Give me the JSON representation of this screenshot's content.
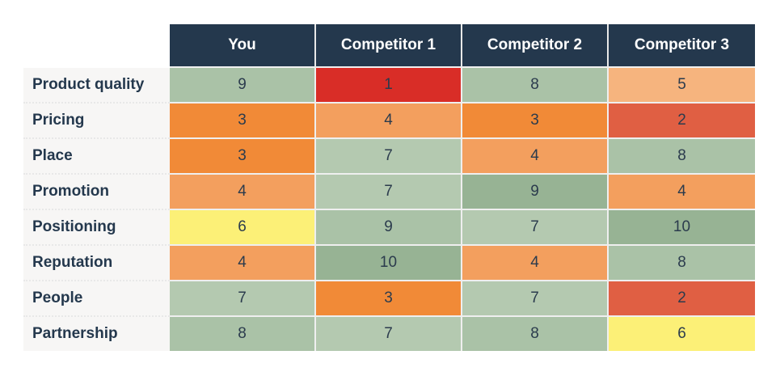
{
  "table": {
    "columns": [
      "You",
      "Competitor 1",
      "Competitor 2",
      "Competitor 3"
    ],
    "rows": [
      {
        "label": "Product quality",
        "values": [
          "9",
          "1",
          "8",
          "5"
        ],
        "colors": [
          "#aac2a7",
          "#d92d27",
          "#aac2a7",
          "#f6b47e"
        ]
      },
      {
        "label": "Pricing",
        "values": [
          "3",
          "4",
          "3",
          "2"
        ],
        "colors": [
          "#f18a37",
          "#f39f5e",
          "#f18a37",
          "#e05f43"
        ]
      },
      {
        "label": "Place",
        "values": [
          "3",
          "7",
          "4",
          "8"
        ],
        "colors": [
          "#f18a37",
          "#b4c9b0",
          "#f39f5e",
          "#aac2a7"
        ]
      },
      {
        "label": "Promotion",
        "values": [
          "4",
          "7",
          "9",
          "4"
        ],
        "colors": [
          "#f39f5e",
          "#b4c9b0",
          "#97b394",
          "#f39f5e"
        ]
      },
      {
        "label": "Positioning",
        "values": [
          "6",
          "9",
          "7",
          "10"
        ],
        "colors": [
          "#fcf077",
          "#aac2a7",
          "#b4c9b0",
          "#97b394"
        ]
      },
      {
        "label": "Reputation",
        "values": [
          "4",
          "10",
          "4",
          "8"
        ],
        "colors": [
          "#f39f5e",
          "#97b394",
          "#f39f5e",
          "#aac2a7"
        ]
      },
      {
        "label": "People",
        "values": [
          "7",
          "3",
          "7",
          "2"
        ],
        "colors": [
          "#b4c9b0",
          "#f18a37",
          "#b4c9b0",
          "#e05f43"
        ]
      },
      {
        "label": "Partnership",
        "values": [
          "8",
          "7",
          "8",
          "6"
        ],
        "colors": [
          "#aac2a7",
          "#b4c9b0",
          "#aac2a7",
          "#fcf077"
        ]
      }
    ]
  },
  "colors": {
    "header_bg": "#24384d",
    "header_text": "#ffffff",
    "label_bg": "#f7f6f5",
    "label_text": "#24384d"
  },
  "chart_data": {
    "type": "heatmap",
    "title": "",
    "x": [
      "You",
      "Competitor 1",
      "Competitor 2",
      "Competitor 3"
    ],
    "y": [
      "Product quality",
      "Pricing",
      "Place",
      "Promotion",
      "Positioning",
      "Reputation",
      "People",
      "Partnership"
    ],
    "values": [
      [
        9,
        1,
        8,
        5
      ],
      [
        3,
        4,
        3,
        2
      ],
      [
        3,
        7,
        4,
        8
      ],
      [
        4,
        7,
        9,
        4
      ],
      [
        6,
        9,
        7,
        10
      ],
      [
        4,
        10,
        4,
        8
      ],
      [
        7,
        3,
        7,
        2
      ],
      [
        8,
        7,
        8,
        6
      ]
    ],
    "scale": "1 (red) to 10 (green), 6 = yellow"
  }
}
